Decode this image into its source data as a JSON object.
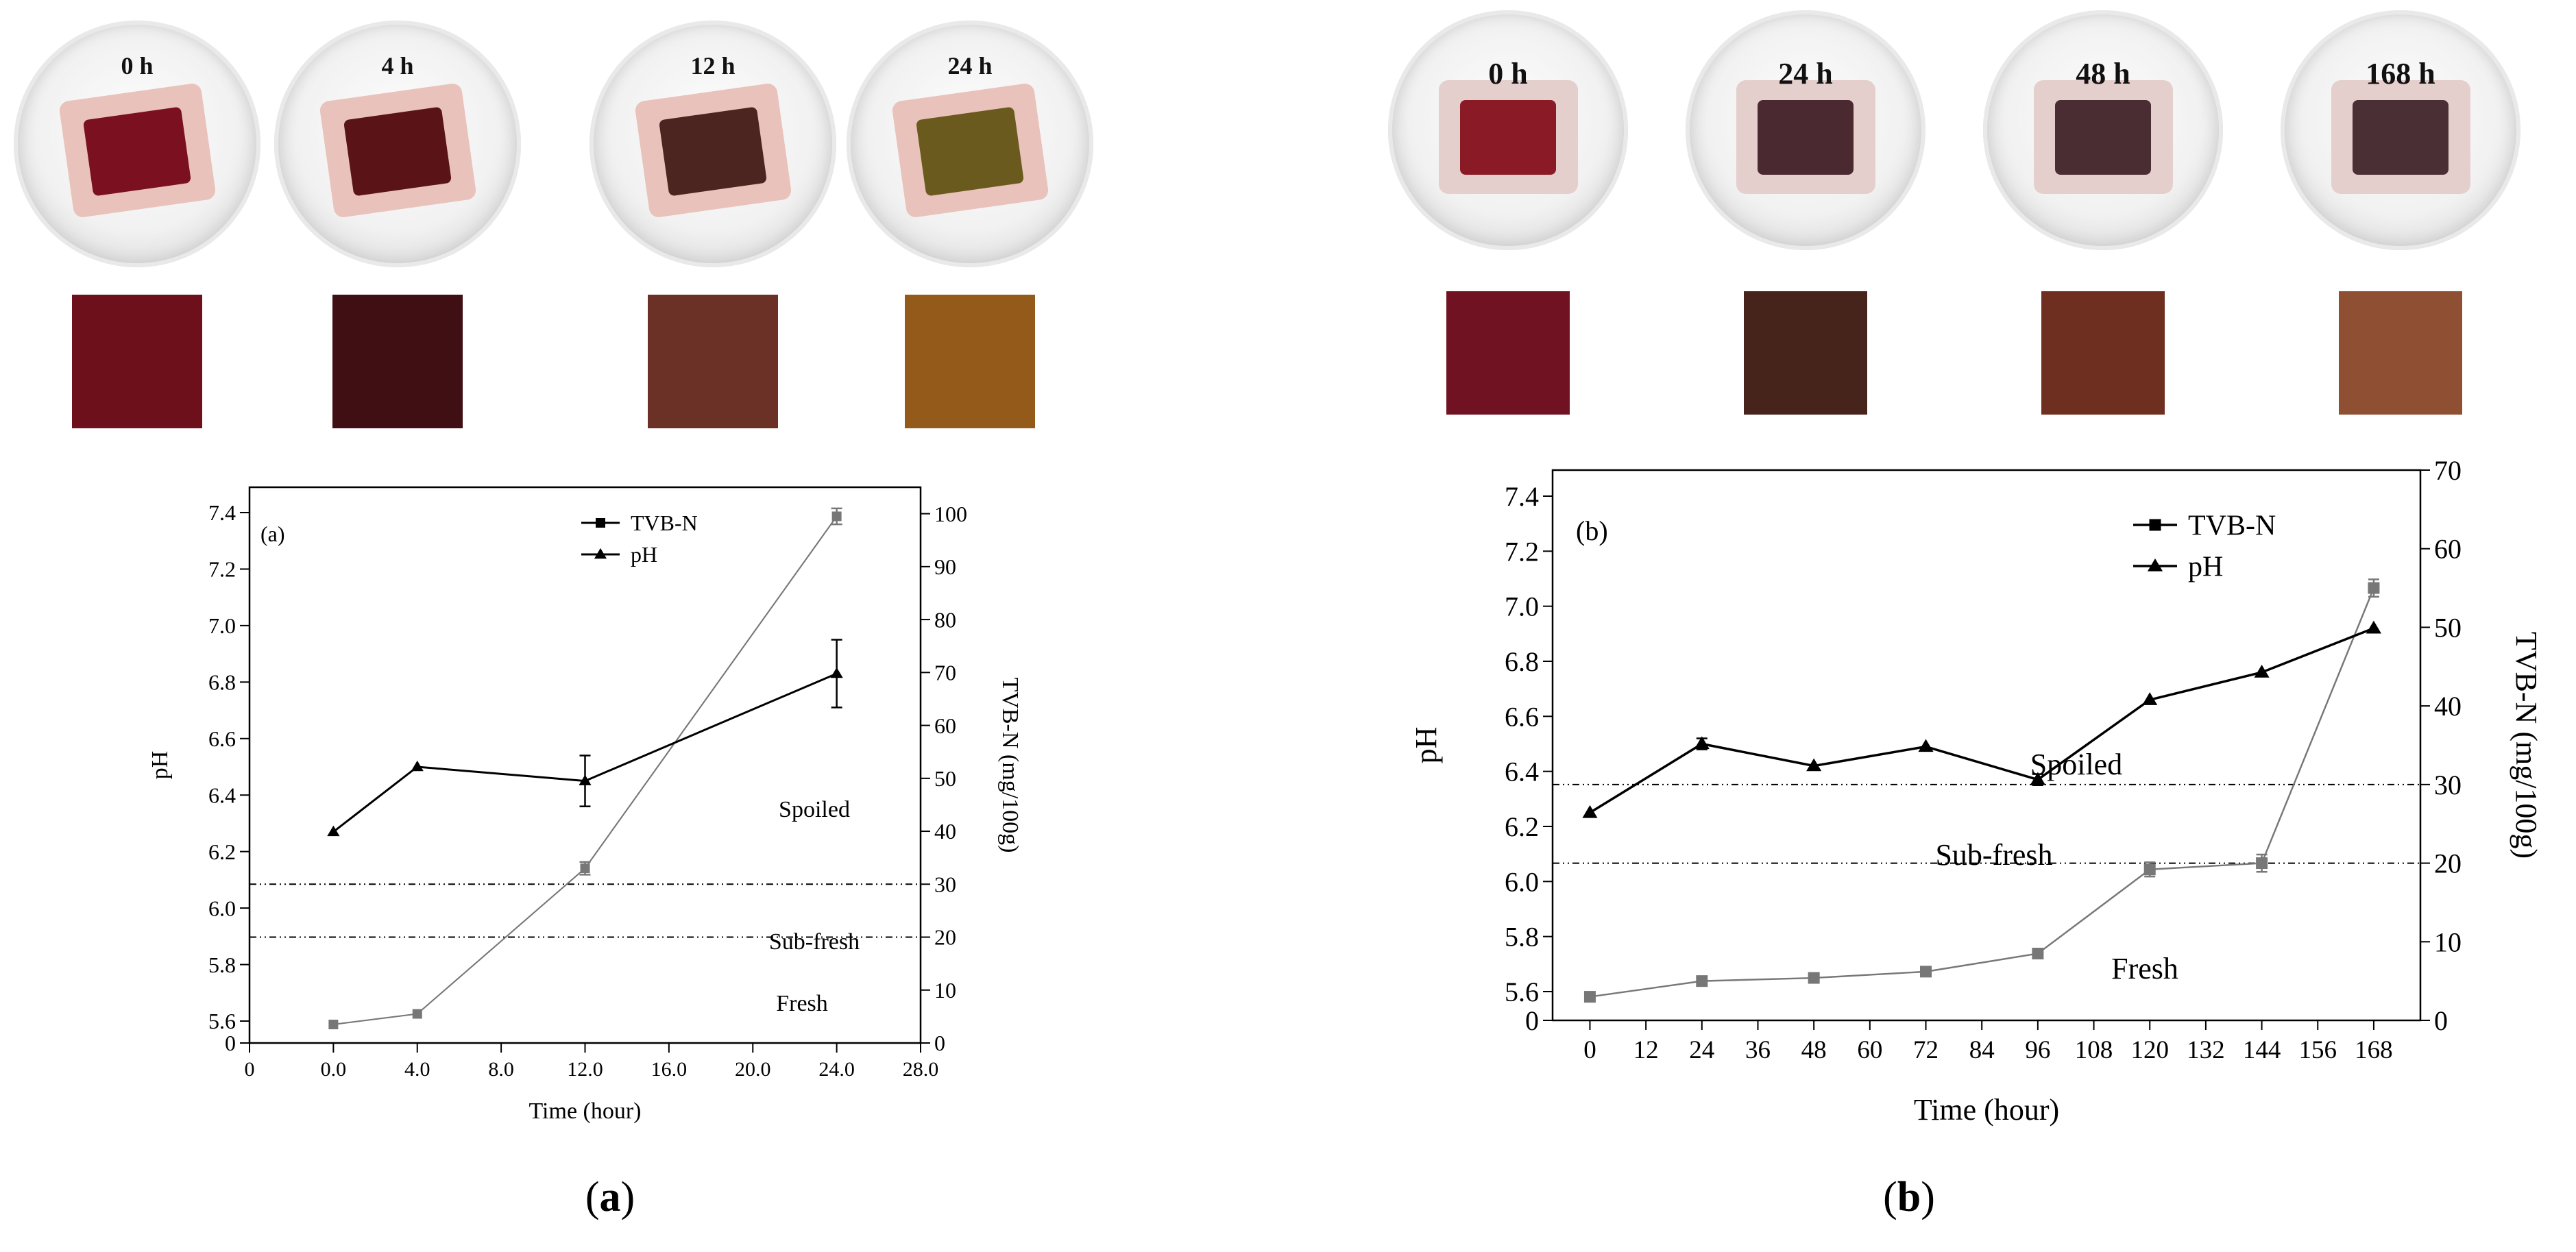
{
  "panel_a": {
    "photos": [
      {
        "time_label": "0 h",
        "swatch_color": "#6e0f1c",
        "sample_color": "#7a1020"
      },
      {
        "time_label": "4 h",
        "swatch_color": "#3f0f13",
        "sample_color": "#5a1418"
      },
      {
        "time_label": "12 h",
        "swatch_color": "#6b3126",
        "sample_color": "#4d2520"
      },
      {
        "time_label": "24 h",
        "swatch_color": "#935a1a",
        "sample_color": "#6b5a1e"
      }
    ],
    "caption_open": "(",
    "caption_letter": "a",
    "caption_close": ")"
  },
  "panel_b": {
    "photos": [
      {
        "time_label": "0 h",
        "swatch_color": "#711222",
        "sample_color": "#8a1a25"
      },
      {
        "time_label": "24 h",
        "swatch_color": "#46231b",
        "sample_color": "#4a2a30"
      },
      {
        "time_label": "48 h",
        "swatch_color": "#6f2f20",
        "sample_color": "#4a2c33"
      },
      {
        "time_label": "168 h",
        "swatch_color": "#8f4f33",
        "sample_color": "#4a3035"
      }
    ],
    "caption_open": "(",
    "caption_letter": "b",
    "caption_close": ")"
  },
  "chart_data": [
    {
      "type": "line",
      "panel_label": "(a)",
      "xlabel": "Time (hour)",
      "ylabel_left": "pH",
      "ylabel_right": "TVB-N (mg/100g)",
      "x_ticks": [
        "0.0",
        "4.0",
        "8.0",
        "12.0",
        "16.0",
        "20.0",
        "24.0",
        "28.0"
      ],
      "x_tick_values": [
        0,
        4,
        8,
        12,
        16,
        20,
        24,
        28
      ],
      "x_extra_tick_label": "0",
      "xlim": [
        -4,
        28
      ],
      "y_left_ticks": [
        "5.6",
        "5.8",
        "6.0",
        "6.2",
        "6.4",
        "6.6",
        "6.8",
        "7.0",
        "7.2",
        "7.4"
      ],
      "y_left_values": [
        5.6,
        5.8,
        6.0,
        6.2,
        6.4,
        6.6,
        6.8,
        7.0,
        7.2,
        7.4
      ],
      "y_left_zero_label": "0",
      "y_right_ticks": [
        "0",
        "10",
        "20",
        "30",
        "40",
        "50",
        "60",
        "70",
        "80",
        "90",
        "100"
      ],
      "y_right_values": [
        0,
        10,
        20,
        30,
        40,
        50,
        60,
        70,
        80,
        90,
        100
      ],
      "y_right_lim": [
        0,
        105
      ],
      "series": [
        {
          "name": "TVB-N",
          "axis": "right",
          "marker": "square",
          "color": "#777777",
          "x": [
            0,
            4,
            12,
            24
          ],
          "y": [
            3.5,
            5.5,
            33,
            99.5
          ],
          "err": [
            0,
            0,
            1.2,
            1.5
          ]
        },
        {
          "name": "pH",
          "axis": "left",
          "marker": "triangle",
          "color": "#000000",
          "x": [
            0,
            4,
            12,
            24
          ],
          "y": [
            6.27,
            6.5,
            6.45,
            6.83
          ],
          "err": [
            0,
            0,
            0.09,
            0.12
          ]
        }
      ],
      "thresholds": [
        30,
        20
      ],
      "region_labels": [
        "Spoiled",
        "Sub-fresh",
        "Fresh"
      ],
      "legend": [
        "TVB-N",
        "pH"
      ]
    },
    {
      "type": "line",
      "panel_label": "(b)",
      "xlabel": "Time (hour)",
      "ylabel_left": "pH",
      "ylabel_right": "TVB-N (mg/100g)",
      "x_ticks": [
        "0",
        "12",
        "24",
        "36",
        "48",
        "60",
        "72",
        "84",
        "96",
        "108",
        "120",
        "132",
        "144",
        "156",
        "168"
      ],
      "x_tick_values": [
        0,
        12,
        24,
        36,
        48,
        60,
        72,
        84,
        96,
        108,
        120,
        132,
        144,
        156,
        168
      ],
      "xlim": [
        -8,
        178
      ],
      "y_left_ticks": [
        "5.6",
        "5.8",
        "6.0",
        "6.2",
        "6.4",
        "6.6",
        "6.8",
        "7.0",
        "7.2",
        "7.4"
      ],
      "y_left_values": [
        5.6,
        5.8,
        6.0,
        6.2,
        6.4,
        6.6,
        6.8,
        7.0,
        7.2,
        7.4
      ],
      "y_left_zero_label": "0",
      "y_right_ticks": [
        "0",
        "10",
        "20",
        "30",
        "40",
        "50",
        "60",
        "70"
      ],
      "y_right_values": [
        0,
        10,
        20,
        30,
        40,
        50,
        60,
        70
      ],
      "y_right_lim": [
        0,
        70
      ],
      "series": [
        {
          "name": "TVB-N",
          "axis": "right",
          "marker": "square",
          "color": "#777777",
          "x": [
            0,
            24,
            48,
            72,
            96,
            120,
            144,
            168
          ],
          "y": [
            3,
            5,
            5.4,
            6.2,
            8.5,
            19.2,
            20,
            55
          ],
          "err": [
            0,
            0,
            0,
            0.6,
            0,
            0.9,
            1.1,
            1.1
          ]
        },
        {
          "name": "pH",
          "axis": "left",
          "marker": "triangle",
          "color": "#000000",
          "x": [
            0,
            24,
            48,
            72,
            96,
            120,
            144,
            168
          ],
          "y": [
            6.25,
            6.5,
            6.42,
            6.49,
            6.37,
            6.66,
            6.76,
            6.92
          ],
          "err": [
            0,
            0.02,
            0,
            0,
            0.02,
            0,
            0,
            0
          ]
        }
      ],
      "thresholds": [
        30,
        20
      ],
      "region_labels": [
        "Spoiled",
        "Sub-fresh",
        "Fresh"
      ],
      "legend": [
        "TVB-N",
        "pH"
      ]
    }
  ]
}
